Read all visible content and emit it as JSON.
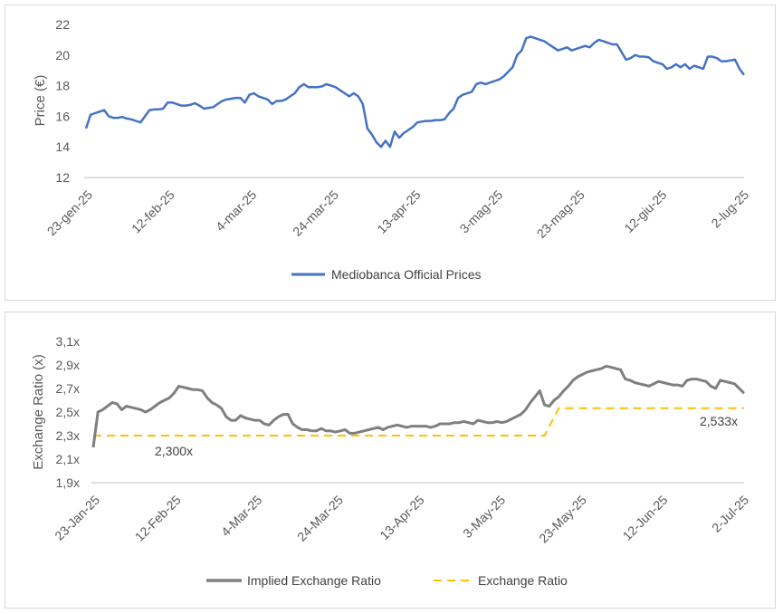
{
  "chart_data": [
    {
      "type": "line",
      "ylabel": "Price (€)",
      "ylim": [
        12,
        22
      ],
      "yticks": [
        "12",
        "14",
        "16",
        "18",
        "20",
        "22"
      ],
      "xtick_labels": [
        "23-gen-25",
        "12-feb-25",
        "4-mar-25",
        "24-mar-25",
        "13-apr-25",
        "3-mag-25",
        "23-mag-25",
        "12-giu-25",
        "2-lug-25"
      ],
      "legend_position": "bottom",
      "grid": false,
      "series": [
        {
          "name": "Mediobanca Official Prices",
          "color": "#4472c4",
          "values": [
            15.2,
            16.1,
            16.2,
            16.3,
            16.4,
            16.0,
            15.9,
            15.9,
            15.95,
            15.85,
            15.8,
            15.7,
            15.6,
            16.0,
            16.4,
            16.45,
            16.45,
            16.5,
            16.9,
            16.9,
            16.8,
            16.7,
            16.7,
            16.75,
            16.85,
            16.7,
            16.5,
            16.55,
            16.6,
            16.8,
            17.0,
            17.1,
            17.15,
            17.2,
            17.2,
            16.9,
            17.4,
            17.5,
            17.3,
            17.2,
            17.1,
            16.8,
            17.0,
            17.0,
            17.1,
            17.3,
            17.5,
            17.9,
            18.1,
            17.9,
            17.9,
            17.9,
            17.95,
            18.1,
            18.0,
            17.9,
            17.7,
            17.5,
            17.3,
            17.5,
            17.3,
            16.8,
            15.2,
            14.8,
            14.3,
            14.0,
            14.4,
            14.0,
            15.0,
            14.6,
            14.9,
            15.1,
            15.3,
            15.6,
            15.65,
            15.7,
            15.7,
            15.75,
            15.75,
            15.8,
            16.2,
            16.5,
            17.2,
            17.4,
            17.5,
            17.6,
            18.1,
            18.2,
            18.1,
            18.2,
            18.3,
            18.4,
            18.6,
            18.9,
            19.2,
            20.0,
            20.3,
            21.1,
            21.2,
            21.1,
            21.0,
            20.9,
            20.7,
            20.5,
            20.3,
            20.4,
            20.5,
            20.3,
            20.4,
            20.5,
            20.6,
            20.5,
            20.8,
            21.0,
            20.9,
            20.8,
            20.7,
            20.7,
            20.2,
            19.7,
            19.8,
            20.0,
            19.9,
            19.9,
            19.85,
            19.6,
            19.5,
            19.4,
            19.1,
            19.2,
            19.4,
            19.2,
            19.4,
            19.1,
            19.3,
            19.2,
            19.1,
            19.9,
            19.9,
            19.8,
            19.6,
            19.6,
            19.65,
            19.7,
            19.1,
            18.7
          ]
        }
      ]
    },
    {
      "type": "line",
      "ylabel": "Exchange Ratio (x)",
      "ylim": [
        1.9,
        3.1
      ],
      "yticks": [
        "1,9x",
        "2,1x",
        "2,3x",
        "2,5x",
        "2,7x",
        "2,9x",
        "3,1x"
      ],
      "xtick_labels": [
        "23-Jan-25",
        "12-Feb-25",
        "4-Mar-25",
        "24-Mar-25",
        "13-Apr-25",
        "3-May-25",
        "23-May-25",
        "12-Jun-25",
        "2-Jul-25"
      ],
      "legend_position": "bottom",
      "grid": false,
      "annotations": [
        "2,300x",
        "2,533x"
      ],
      "series": [
        {
          "name": "Implied Exchange Ratio",
          "color": "#7f7f7f",
          "values": [
            2.2,
            2.5,
            2.52,
            2.55,
            2.58,
            2.57,
            2.52,
            2.55,
            2.54,
            2.53,
            2.52,
            2.5,
            2.52,
            2.55,
            2.58,
            2.6,
            2.62,
            2.66,
            2.72,
            2.71,
            2.7,
            2.69,
            2.69,
            2.68,
            2.62,
            2.58,
            2.56,
            2.53,
            2.46,
            2.43,
            2.43,
            2.47,
            2.45,
            2.44,
            2.43,
            2.43,
            2.4,
            2.39,
            2.43,
            2.46,
            2.48,
            2.48,
            2.4,
            2.37,
            2.35,
            2.35,
            2.34,
            2.34,
            2.36,
            2.34,
            2.34,
            2.33,
            2.34,
            2.35,
            2.32,
            2.32,
            2.33,
            2.34,
            2.35,
            2.36,
            2.37,
            2.35,
            2.37,
            2.38,
            2.39,
            2.38,
            2.37,
            2.38,
            2.38,
            2.38,
            2.38,
            2.37,
            2.38,
            2.4,
            2.4,
            2.4,
            2.41,
            2.41,
            2.42,
            2.41,
            2.4,
            2.43,
            2.42,
            2.41,
            2.41,
            2.42,
            2.41,
            2.42,
            2.44,
            2.46,
            2.48,
            2.52,
            2.58,
            2.63,
            2.68,
            2.56,
            2.55,
            2.6,
            2.63,
            2.68,
            2.72,
            2.77,
            2.8,
            2.82,
            2.84,
            2.85,
            2.86,
            2.87,
            2.89,
            2.88,
            2.87,
            2.86,
            2.78,
            2.77,
            2.75,
            2.74,
            2.73,
            2.72,
            2.74,
            2.76,
            2.75,
            2.74,
            2.73,
            2.73,
            2.72,
            2.77,
            2.78,
            2.78,
            2.77,
            2.76,
            2.72,
            2.7,
            2.77,
            2.76,
            2.75,
            2.74,
            2.7,
            2.66
          ]
        },
        {
          "name": "Exchange Ratio",
          "color": "#ffc000",
          "dashed": true,
          "segments": [
            {
              "from_index": 0,
              "to_index": 95,
              "value": 2.3
            },
            {
              "from_index": 98,
              "to_index": 137,
              "value": 2.533
            }
          ]
        }
      ]
    }
  ]
}
